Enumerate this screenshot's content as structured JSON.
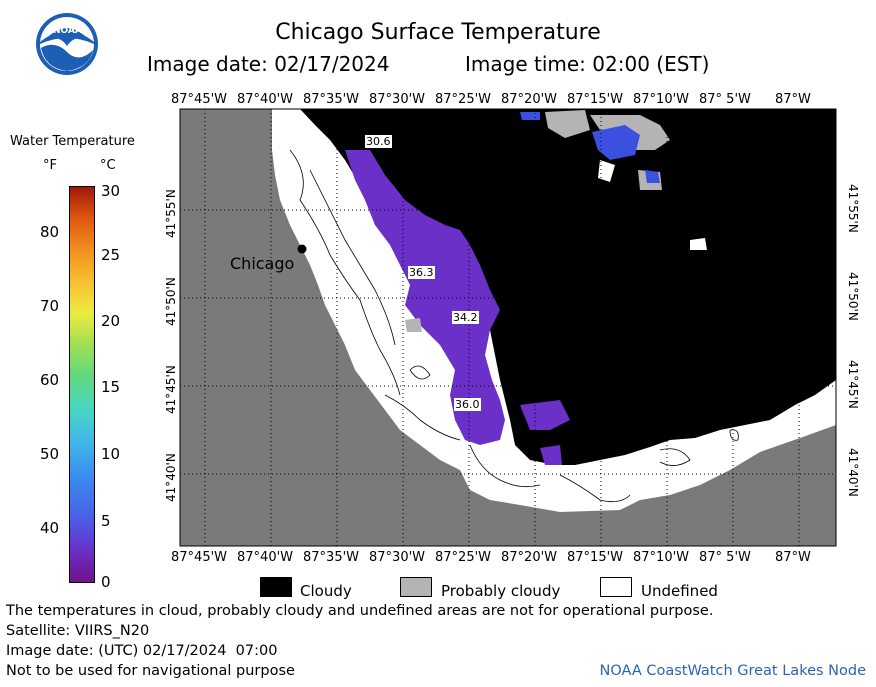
{
  "header": {
    "title": "Chicago Surface Temperature",
    "image_date": "Image date: 02/17/2024",
    "image_time": "Image time: 02:00 (EST)"
  },
  "legend": {
    "title": "Water Temperature",
    "unit_f": "°F",
    "unit_c": "°C",
    "f_ticks": [
      "80",
      "70",
      "60",
      "50",
      "40"
    ],
    "c_ticks": [
      "30",
      "25",
      "20",
      "15",
      "10",
      "5",
      "0"
    ]
  },
  "map": {
    "top_lon_labels": [
      "87°45'W",
      "87°40'W",
      "87°35'W",
      "87°30'W",
      "87°25'W",
      "87°20'W",
      "87°15'W",
      "87°10'W",
      "87° 5'W",
      "87°W"
    ],
    "bottom_lon_labels": [
      "87°45'W",
      "87°40'W",
      "87°35'W",
      "87°30'W",
      "87°25'W",
      "87°20'W",
      "87°15'W",
      "87°10'W",
      "87° 5'W",
      "87°W"
    ],
    "lat_labels": [
      "41°55'N",
      "41°50'N",
      "41°45'N",
      "41°40'N"
    ],
    "city": "Chicago",
    "temp_labels": [
      "30.6",
      "36.3",
      "34.2",
      "36.0"
    ]
  },
  "key": {
    "cloudy": "Cloudy",
    "probably_cloudy": "Probably cloudy",
    "undefined": "Undefined"
  },
  "footer": {
    "disclaimer": "The temperatures in cloud, probably cloudy and undefined areas are not for operational purpose.",
    "satellite": "Satellite: VIIRS_N20",
    "utc_date": "Image date: (UTC) 02/17/2024  07:00",
    "nav": "Not to be used for navigational purpose",
    "credit": "NOAA CoastWatch Great Lakes Node"
  },
  "colors": {
    "land": "#7a7a7a",
    "cloud": "#000000",
    "probably_cloud": "#b4b4b4",
    "water_purple": "#6a30c8",
    "water_blue": "#3c50e0"
  }
}
